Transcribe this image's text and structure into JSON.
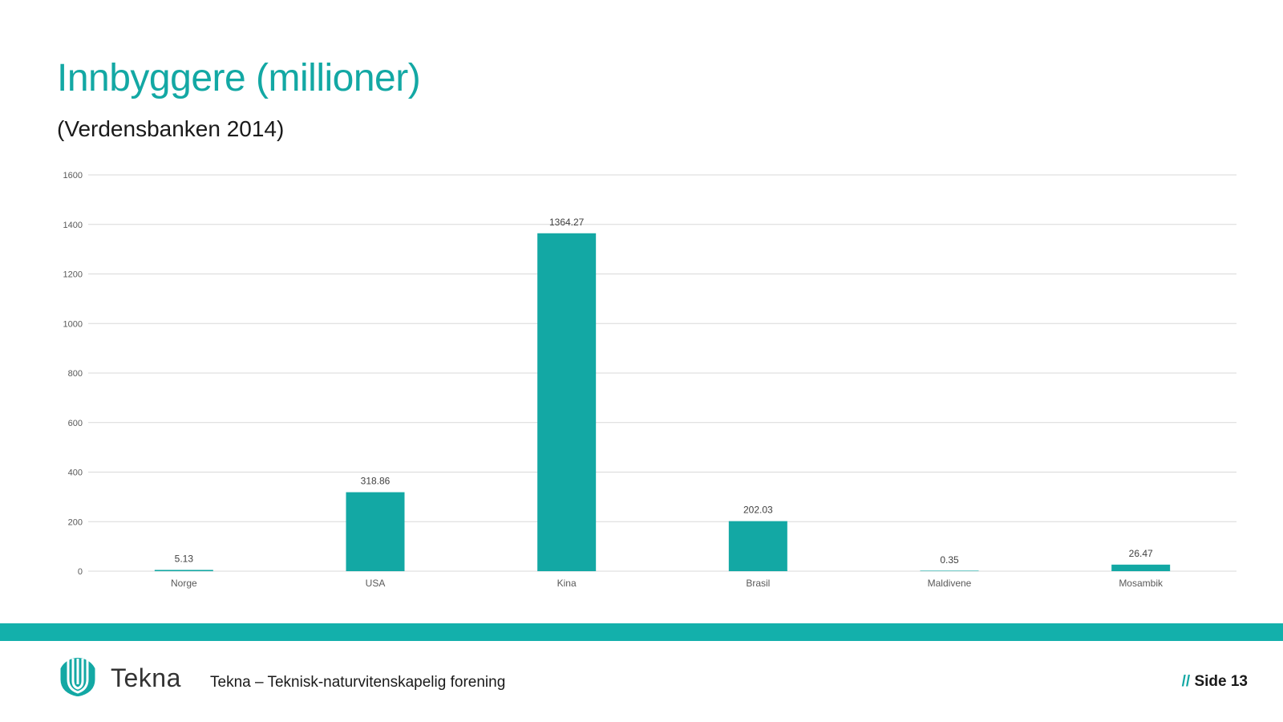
{
  "slide": {
    "title": "Innbyggere (millioner)",
    "subtitle": "(Verdensbanken 2014)"
  },
  "chart_data": {
    "type": "bar",
    "categories": [
      "Norge",
      "USA",
      "Kina",
      "Brasil",
      "Maldivene",
      "Mosambik"
    ],
    "values": [
      5.13,
      318.86,
      1364.27,
      202.03,
      0.35,
      26.47
    ],
    "data_labels": [
      "5.13",
      "318.86",
      "1364.27",
      "202.03",
      "0.35",
      "26.47"
    ],
    "yticks": [
      "0",
      "200",
      "400",
      "600",
      "800",
      "1000",
      "1200",
      "1400",
      "1600"
    ],
    "ylim": [
      0,
      1600
    ],
    "grid": true,
    "legend": "none",
    "title": "",
    "xlabel": "",
    "ylabel": "",
    "bar_color": "#13a8a4"
  },
  "footer": {
    "logo_text": "Tekna",
    "org_text": "Tekna – Teknisk-naturvitenskapelig forening",
    "page_prefix": "//",
    "page_label": "Side 13",
    "band_color": "#13b0ab"
  }
}
